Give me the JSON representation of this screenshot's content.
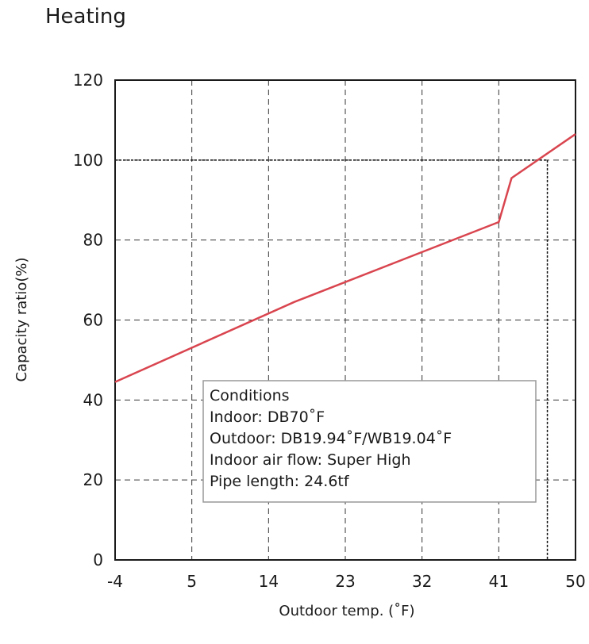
{
  "chart_data": {
    "type": "line",
    "title": "Heating",
    "xlabel": "Outdoor temp. (˚F)",
    "ylabel": "Capacity ratio(%)",
    "xlim": [
      -4,
      50
    ],
    "ylim": [
      0,
      120
    ],
    "x_ticks": [
      "-4",
      "5",
      "14",
      "23",
      "32",
      "41",
      "50"
    ],
    "y_ticks": [
      "0",
      "20",
      "40",
      "60",
      "80",
      "100",
      "120"
    ],
    "grid": true,
    "series": [
      {
        "color": "#d9454f",
        "x": [
          -4,
          17,
          41,
          42.5,
          50
        ],
        "y": [
          44.5,
          64.5,
          84.5,
          95.5,
          106.5
        ]
      }
    ],
    "reference_lines": {
      "x": 46.7,
      "y": 100
    },
    "annotation": {
      "lines": [
        "Conditions",
        "Indoor: DB70˚F",
        "Outdoor: DB19.94˚F/WB19.04˚F",
        "Indoor air flow: Super High",
        "Pipe length: 24.6tf"
      ]
    }
  }
}
